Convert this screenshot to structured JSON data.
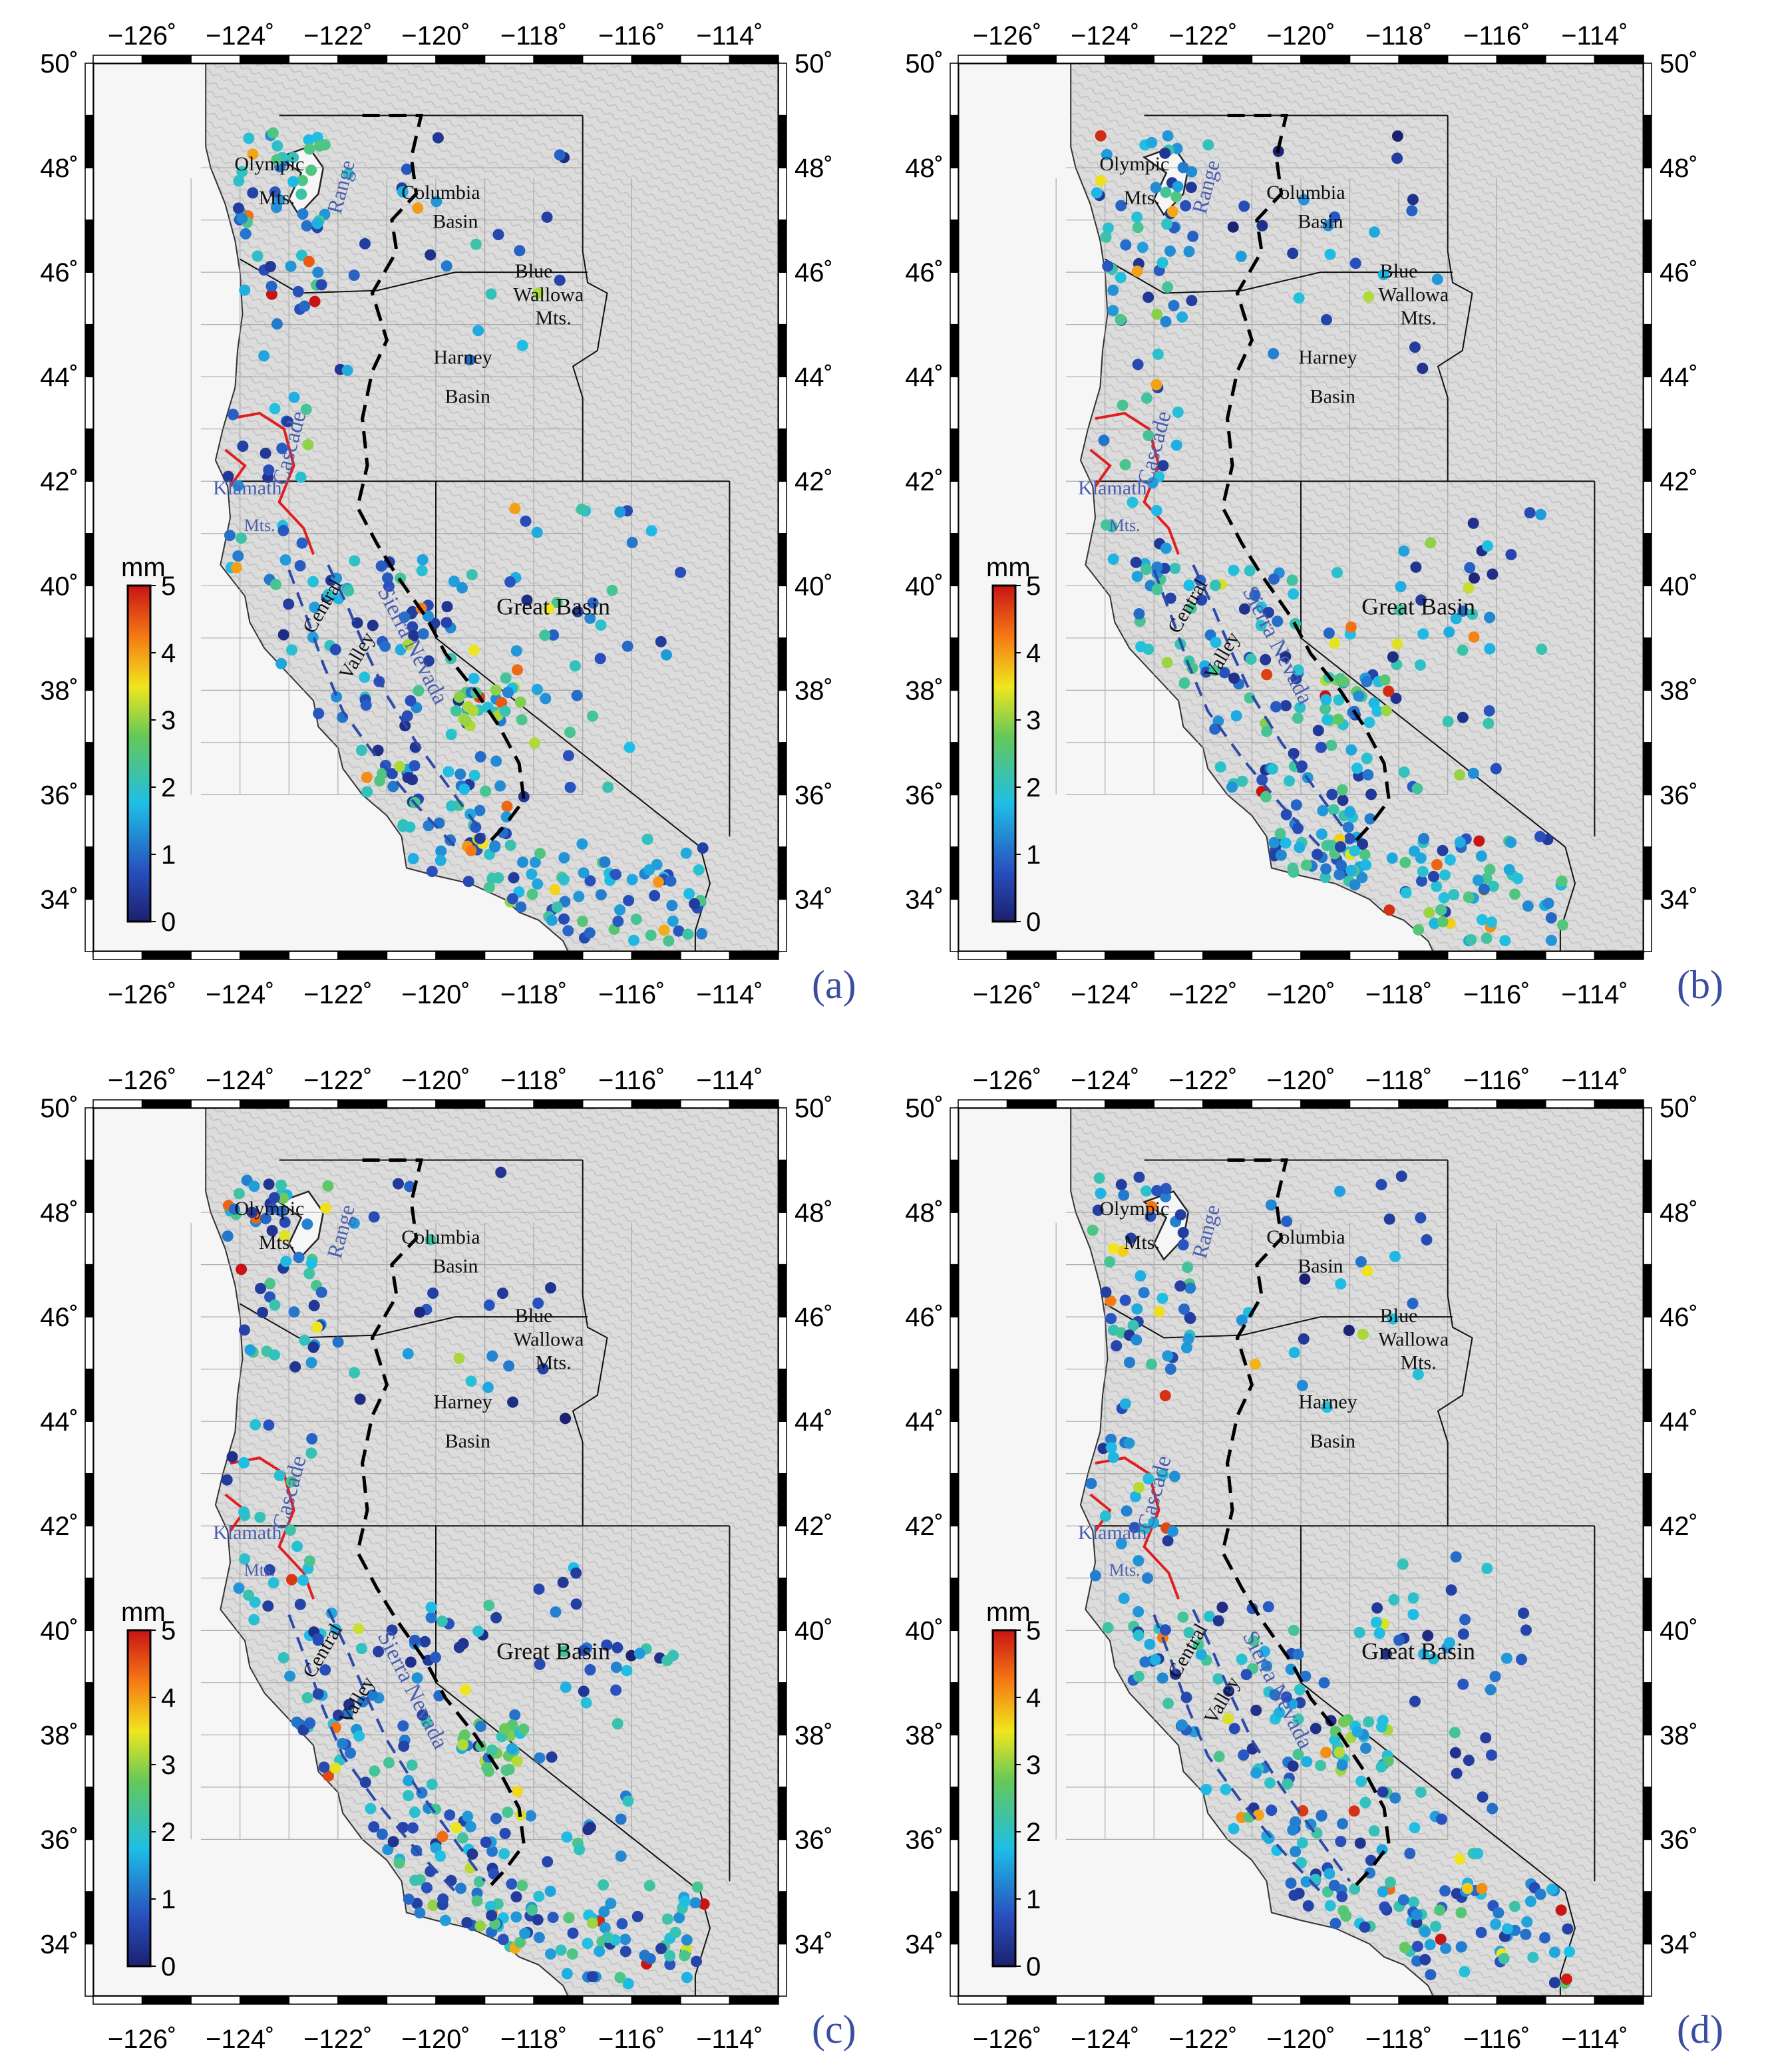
{
  "figure": {
    "panels": [
      {
        "id": "a",
        "label": "(a)"
      },
      {
        "id": "b",
        "label": "(b)"
      },
      {
        "id": "c",
        "label": "(c)"
      },
      {
        "id": "d",
        "label": "(d)"
      }
    ],
    "lon_ticks": [
      "−126˚",
      "−124˚",
      "−122˚",
      "−120˚",
      "−118˚",
      "−116˚",
      "−114˚"
    ],
    "lat_ticks": [
      "34˚",
      "36˚",
      "38˚",
      "40˚",
      "42˚",
      "44˚",
      "46˚",
      "48˚",
      "50˚"
    ],
    "colorbar": {
      "unit": "mm",
      "tick_labels": [
        "0",
        "1",
        "2",
        "3",
        "4",
        "5"
      ],
      "min": 0,
      "max": 5
    },
    "region_labels": [
      {
        "text": "Olympic",
        "color": "#111111"
      },
      {
        "text": "Mts.",
        "color": "#111111"
      },
      {
        "text": "Columbia",
        "color": "#111111"
      },
      {
        "text": "Basin",
        "color": "#111111"
      },
      {
        "text": "Range",
        "color": "#4a5fb0"
      },
      {
        "text": "Blue",
        "color": "#111111"
      },
      {
        "text": "Wallowa",
        "color": "#111111"
      },
      {
        "text": "Mts.",
        "color": "#111111"
      },
      {
        "text": "Harney",
        "color": "#111111"
      },
      {
        "text": "Basin",
        "color": "#111111"
      },
      {
        "text": "Cascade",
        "color": "#4a5fb0"
      },
      {
        "text": "Klamath",
        "color": "#4a5fb0"
      },
      {
        "text": "Mts.",
        "color": "#4a5fb0"
      },
      {
        "text": "Central",
        "color": "#111111"
      },
      {
        "text": "Valley",
        "color": "#111111"
      },
      {
        "text": "Sierra Nevada",
        "color": "#4a5fb0"
      },
      {
        "text": "Great Basin",
        "color": "#111111"
      }
    ],
    "colors": {
      "ocean": "#f6f6f6",
      "land": "#dcdcdc",
      "frame": "#000000",
      "panel_label": "#3a4ea0",
      "fault_red": "#e02020",
      "boundary_black": "#111111"
    }
  }
}
